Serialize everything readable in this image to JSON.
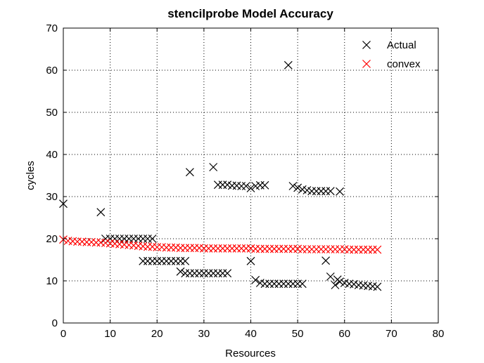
{
  "chart_data": {
    "type": "scatter",
    "title": "stencilprobe Model Accuracy",
    "xlabel": "Resources",
    "ylabel": "cycles",
    "xlim": [
      0,
      80
    ],
    "ylim": [
      0,
      70
    ],
    "xticks": [
      0,
      10,
      20,
      30,
      40,
      50,
      60,
      70,
      80
    ],
    "yticks": [
      0,
      10,
      20,
      30,
      40,
      50,
      60,
      70
    ],
    "grid": true,
    "legend_position": "top-right",
    "marker": "x",
    "series": [
      {
        "name": "Actual",
        "color": "#000000",
        "points": [
          [
            0,
            28.3
          ],
          [
            8,
            26.3
          ],
          [
            9,
            20
          ],
          [
            10,
            20
          ],
          [
            11,
            20
          ],
          [
            12,
            20
          ],
          [
            13,
            20
          ],
          [
            14,
            20
          ],
          [
            15,
            20
          ],
          [
            16,
            20
          ],
          [
            17,
            20
          ],
          [
            18,
            20
          ],
          [
            19,
            20
          ],
          [
            17,
            14.7
          ],
          [
            18,
            14.7
          ],
          [
            19,
            14.7
          ],
          [
            20,
            14.7
          ],
          [
            21,
            14.7
          ],
          [
            22,
            14.7
          ],
          [
            23,
            14.7
          ],
          [
            24,
            14.7
          ],
          [
            25,
            14.7
          ],
          [
            26,
            14.7
          ],
          [
            25,
            12.2
          ],
          [
            26,
            11.8
          ],
          [
            27,
            11.8
          ],
          [
            28,
            11.8
          ],
          [
            29,
            11.8
          ],
          [
            30,
            11.8
          ],
          [
            31,
            11.8
          ],
          [
            32,
            11.8
          ],
          [
            33,
            11.8
          ],
          [
            34,
            11.8
          ],
          [
            35,
            11.8
          ],
          [
            27,
            35.8
          ],
          [
            32,
            37
          ],
          [
            33,
            32.8
          ],
          [
            34,
            32.8
          ],
          [
            35,
            32.8
          ],
          [
            36,
            32.6
          ],
          [
            37,
            32.6
          ],
          [
            38,
            32.5
          ],
          [
            39,
            32.5
          ],
          [
            40,
            32
          ],
          [
            41,
            32.5
          ],
          [
            42,
            32.7
          ],
          [
            43,
            32.7
          ],
          [
            40,
            14.7
          ],
          [
            41,
            10.2
          ],
          [
            42,
            9.5
          ],
          [
            43,
            9.3
          ],
          [
            44,
            9.3
          ],
          [
            45,
            9.3
          ],
          [
            46,
            9.3
          ],
          [
            47,
            9.3
          ],
          [
            48,
            9.3
          ],
          [
            49,
            9.3
          ],
          [
            50,
            9.3
          ],
          [
            51,
            9.3
          ],
          [
            48,
            61.2
          ],
          [
            49,
            32.5
          ],
          [
            50,
            32.1
          ],
          [
            51,
            31.7
          ],
          [
            52,
            31.5
          ],
          [
            53,
            31.3
          ],
          [
            54,
            31.3
          ],
          [
            55,
            31.3
          ],
          [
            56,
            31.3
          ],
          [
            57,
            31.3
          ],
          [
            59,
            31.2
          ],
          [
            56,
            14.8
          ],
          [
            57,
            11
          ],
          [
            58,
            9
          ],
          [
            58.5,
            10.3
          ],
          [
            59,
            9.8
          ],
          [
            60,
            9.5
          ],
          [
            61,
            9.3
          ],
          [
            62,
            9.2
          ],
          [
            63,
            9
          ],
          [
            64,
            8.9
          ],
          [
            65,
            8.8
          ],
          [
            66,
            8.7
          ],
          [
            67,
            8.6
          ]
        ]
      },
      {
        "name": "convex",
        "color": "#ff0000",
        "points": [
          [
            0,
            19.8
          ],
          [
            1,
            19.5
          ],
          [
            2,
            19.4
          ],
          [
            3,
            19.3
          ],
          [
            4,
            19.3
          ],
          [
            5,
            19.2
          ],
          [
            6,
            19.2
          ],
          [
            7,
            19.1
          ],
          [
            8,
            19.1
          ],
          [
            9,
            19.0
          ],
          [
            10,
            18.9
          ],
          [
            11,
            18.8
          ],
          [
            12,
            18.7
          ],
          [
            13,
            18.6
          ],
          [
            14,
            18.5
          ],
          [
            15,
            18.4
          ],
          [
            16,
            18.3
          ],
          [
            17,
            18.2
          ],
          [
            18,
            18.1
          ],
          [
            19,
            18.1
          ],
          [
            20,
            18.0
          ],
          [
            21,
            18.0
          ],
          [
            22,
            17.9
          ],
          [
            23,
            17.9
          ],
          [
            24,
            17.9
          ],
          [
            25,
            17.8
          ],
          [
            26,
            17.8
          ],
          [
            27,
            17.8
          ],
          [
            28,
            17.8
          ],
          [
            29,
            17.8
          ],
          [
            30,
            17.7
          ],
          [
            31,
            17.7
          ],
          [
            32,
            17.7
          ],
          [
            33,
            17.7
          ],
          [
            34,
            17.7
          ],
          [
            35,
            17.7
          ],
          [
            36,
            17.7
          ],
          [
            37,
            17.7
          ],
          [
            38,
            17.7
          ],
          [
            39,
            17.7
          ],
          [
            40,
            17.7
          ],
          [
            41,
            17.6
          ],
          [
            42,
            17.6
          ],
          [
            43,
            17.6
          ],
          [
            44,
            17.6
          ],
          [
            45,
            17.6
          ],
          [
            46,
            17.6
          ],
          [
            47,
            17.6
          ],
          [
            48,
            17.6
          ],
          [
            49,
            17.6
          ],
          [
            50,
            17.6
          ],
          [
            51,
            17.5
          ],
          [
            52,
            17.5
          ],
          [
            53,
            17.5
          ],
          [
            54,
            17.5
          ],
          [
            55,
            17.5
          ],
          [
            56,
            17.5
          ],
          [
            57,
            17.5
          ],
          [
            58,
            17.5
          ],
          [
            59,
            17.5
          ],
          [
            60,
            17.5
          ],
          [
            61,
            17.4
          ],
          [
            62,
            17.4
          ],
          [
            63,
            17.4
          ],
          [
            64,
            17.4
          ],
          [
            65,
            17.4
          ],
          [
            66,
            17.4
          ],
          [
            67,
            17.4
          ]
        ]
      }
    ]
  }
}
